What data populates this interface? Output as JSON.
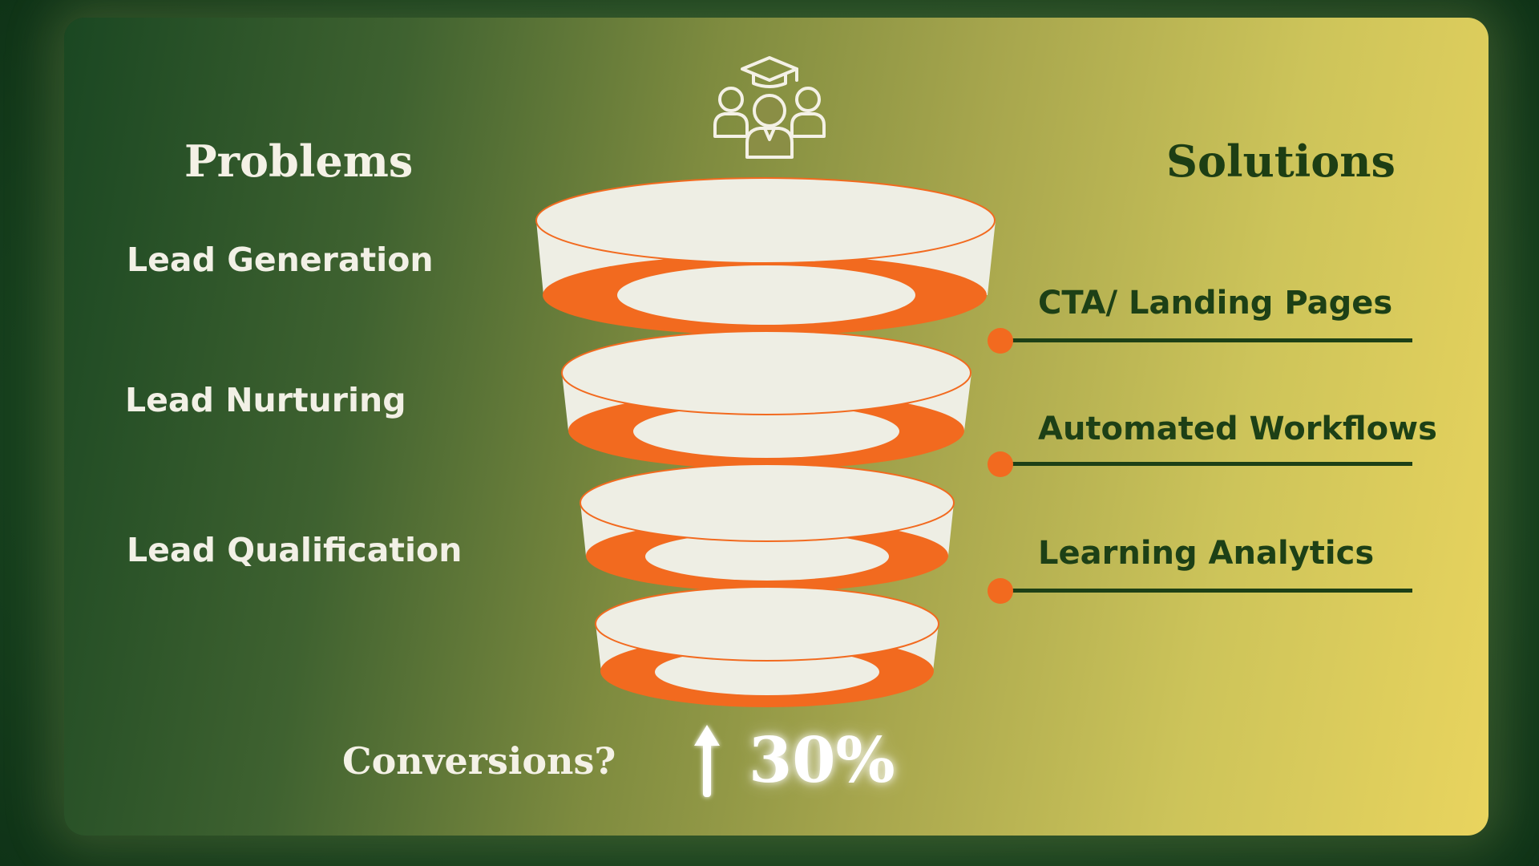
{
  "headings": {
    "problems": "Problems",
    "solutions": "Solutions"
  },
  "problems": [
    "Lead Generation",
    "Lead Nurturing",
    "Lead Qualification"
  ],
  "solutions": [
    "CTA/ Landing Pages",
    "Automated Workflows",
    "Learning Analytics"
  ],
  "footer": {
    "conversions_label": "Conversions?",
    "increase_value": "30%"
  },
  "icons": {
    "top": "students-graduation-cap-icon",
    "increase": "up-arrow-icon"
  },
  "colors": {
    "accent_orange": "#f26a1f",
    "funnel_cream": "#eeeee4",
    "dark_green": "#1d4016",
    "light_text": "#f4f1e6"
  }
}
